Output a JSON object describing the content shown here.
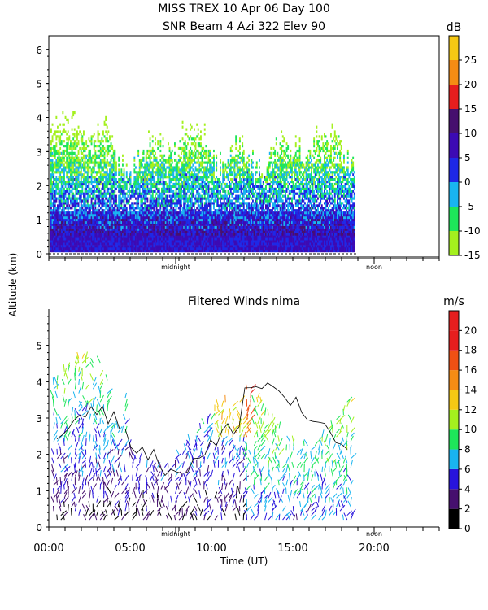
{
  "chart_data": [
    {
      "type": "heatmap",
      "title_line1": "MISS TREX   10 Apr 06 Day 100",
      "title_line2": "SNR Beam 4 Azi 322 Elev 90",
      "ylim": [
        0,
        6.4
      ],
      "y_ticks": [
        "0",
        "1",
        "2",
        "3",
        "4",
        "5",
        "6"
      ],
      "xlim": [
        0,
        24
      ],
      "x_day_markers": [
        {
          "x": 7.8,
          "label": "midnight"
        },
        {
          "x": 20.0,
          "label": "noon"
        }
      ],
      "colorbar": {
        "unit": "dB",
        "range": [
          -15,
          30
        ],
        "labels": [
          "25",
          "20",
          "15",
          "10",
          "5",
          "0",
          "-5",
          "-10",
          "-15"
        ],
        "bands": [
          {
            "from": -15,
            "to": -10,
            "color": "#a4f01e"
          },
          {
            "from": -10,
            "to": -5,
            "color": "#1ee65a"
          },
          {
            "from": -5,
            "to": 0,
            "color": "#19b4f0"
          },
          {
            "from": 0,
            "to": 5,
            "color": "#1e28e6"
          },
          {
            "from": 5,
            "to": 10,
            "color": "#3c0ab4"
          },
          {
            "from": 10,
            "to": 15,
            "color": "#46106e"
          },
          {
            "from": 15,
            "to": 20,
            "color": "#e61e1e"
          },
          {
            "from": 20,
            "to": 25,
            "color": "#f58c14"
          },
          {
            "from": 25,
            "to": 30,
            "color": "#f5c814"
          }
        ]
      },
      "data_extent_x": [
        0,
        18.8
      ]
    },
    {
      "type": "scatter",
      "title": "Filtered Winds nima",
      "ylim": [
        0,
        6
      ],
      "y_ticks": [
        "0",
        "1",
        "2",
        "3",
        "4",
        "5"
      ],
      "xlim": [
        0,
        24
      ],
      "x_ticks": [
        "00:00",
        "05:00",
        "10:00",
        "15:00",
        "20:00"
      ],
      "x_tick_values": [
        0,
        5,
        10,
        15,
        20
      ],
      "x_day_markers": [
        {
          "x": 7.8,
          "label": "midnight"
        },
        {
          "x": 20.0,
          "label": "noon"
        }
      ],
      "xlabel": "Time (UT)",
      "colorbar": {
        "unit": "m/s",
        "range": [
          0,
          22
        ],
        "labels": [
          "20",
          "18",
          "16",
          "14",
          "12",
          "10",
          "8",
          "6",
          "4",
          "2",
          "0"
        ],
        "bands": [
          {
            "from": 0,
            "to": 2,
            "color": "#000000"
          },
          {
            "from": 2,
            "to": 4,
            "color": "#46106e"
          },
          {
            "from": 4,
            "to": 6,
            "color": "#2814dc"
          },
          {
            "from": 6,
            "to": 8,
            "color": "#19b4f0"
          },
          {
            "from": 8,
            "to": 10,
            "color": "#1ee65a"
          },
          {
            "from": 10,
            "to": 12,
            "color": "#a4f01e"
          },
          {
            "from": 12,
            "to": 14,
            "color": "#f5c814"
          },
          {
            "from": 14,
            "to": 16,
            "color": "#f58c14"
          },
          {
            "from": 16,
            "to": 18,
            "color": "#f05014"
          },
          {
            "from": 18,
            "to": 20,
            "color": "#e61e1e"
          },
          {
            "from": 20,
            "to": 22,
            "color": "#e61e1e"
          }
        ]
      },
      "data_extent_x": [
        0,
        18.6
      ]
    }
  ],
  "shared": {
    "ylabel": "Altitude (km)"
  }
}
